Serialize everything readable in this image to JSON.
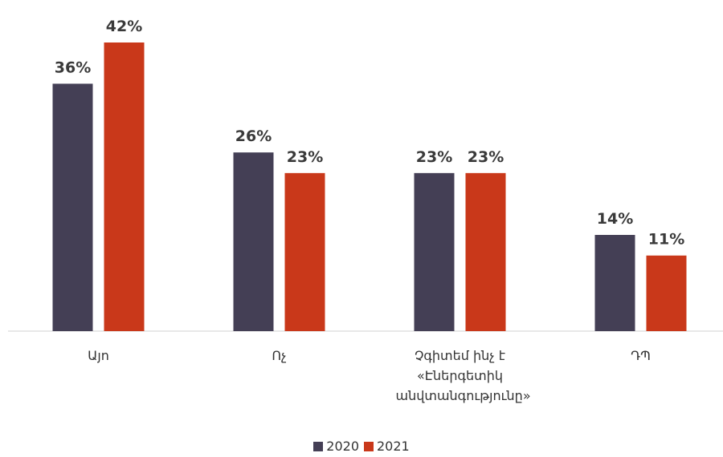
{
  "chart_data": {
    "type": "bar",
    "categories": [
      "Այո",
      "Ոչ",
      "Չգիտեմ ինչ է «Էներգետիկ անվտանգությունը»",
      "ԴՊ"
    ],
    "series": [
      {
        "name": "2020",
        "color": "#443f55",
        "values": [
          36,
          26,
          23,
          14
        ],
        "value_labels": [
          "36%",
          "26%",
          "23%",
          "14%"
        ]
      },
      {
        "name": "2021",
        "color": "#c9381a",
        "values": [
          42,
          23,
          23,
          11
        ],
        "value_labels": [
          "42%",
          "23%",
          "23%",
          "11%"
        ]
      }
    ]
  }
}
